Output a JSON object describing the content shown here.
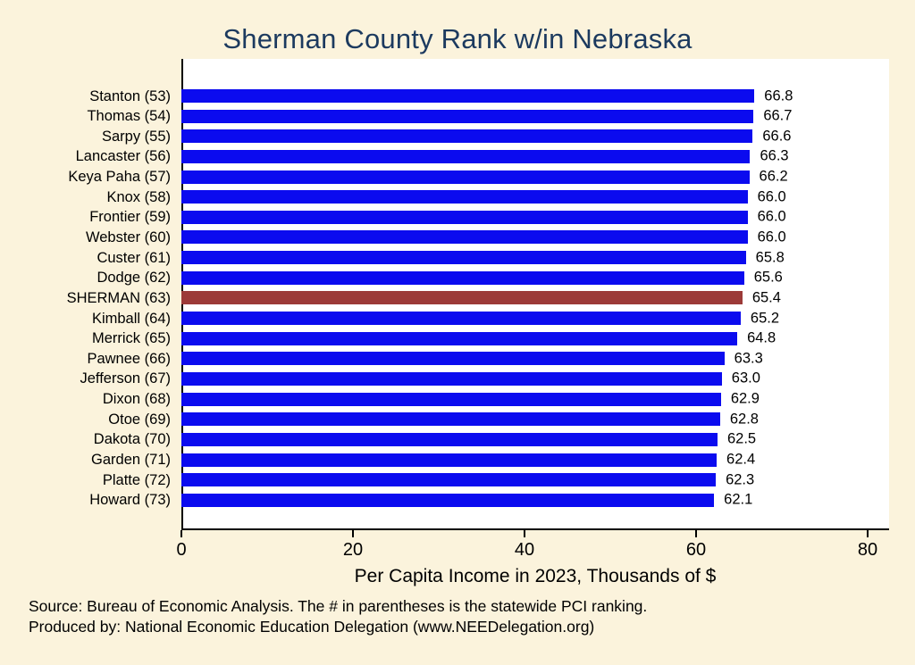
{
  "chart_data": {
    "type": "bar",
    "orientation": "horizontal",
    "title": "Sherman County Rank w/in Nebraska",
    "xlabel": "Per Capita Income in 2023, Thousands of $",
    "categories": [
      "Stanton (53)",
      "Thomas (54)",
      "Sarpy (55)",
      "Lancaster (56)",
      "Keya Paha (57)",
      "Knox (58)",
      "Frontier (59)",
      "Webster (60)",
      "Custer (61)",
      "Dodge (62)",
      "SHERMAN (63)",
      "Kimball (64)",
      "Merrick (65)",
      "Pawnee (66)",
      "Jefferson (67)",
      "Dixon (68)",
      "Otoe (69)",
      "Dakota (70)",
      "Garden (71)",
      "Platte (72)",
      "Howard (73)"
    ],
    "values": [
      66.8,
      66.7,
      66.6,
      66.3,
      66.2,
      66.0,
      66.0,
      66.0,
      65.8,
      65.6,
      65.4,
      65.2,
      64.8,
      63.3,
      63.0,
      62.9,
      62.8,
      62.5,
      62.4,
      62.3,
      62.1
    ],
    "highlight_index": 10,
    "highlight_category": "SHERMAN (63)",
    "bar_color": "#0b0bef",
    "highlight_color": "#9c3a38",
    "x_ticks": [
      0,
      20,
      40,
      60,
      80
    ],
    "xlim": [
      0,
      82.5
    ],
    "grid": false,
    "legend": "none",
    "value_labels_shown": true
  },
  "colors": {
    "page_background": "#fbf3dc",
    "plot_background": "#ffffff",
    "title_text": "#1c3a5f",
    "axis_text": "#000000"
  },
  "footer": {
    "line1": "Source: Bureau of Economic Analysis. The # in parentheses is the statewide PCI ranking.",
    "line2": "Produced by: National Economic Education Delegation (www.NEEDelegation.org)"
  }
}
